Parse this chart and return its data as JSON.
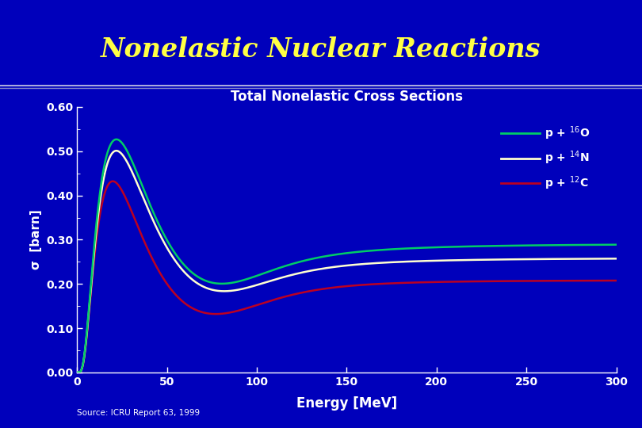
{
  "title": "Nonelastic Nuclear Reactions",
  "subtitle": "Total Nonelastic Cross Sections",
  "xlabel": "Energy [MeV]",
  "ylabel": "σ  [barn]",
  "source": "Source: ICRU Report 63, 1999",
  "bg_color": "#0000BB",
  "title_color": "#FFFF44",
  "subtitle_color": "#FFFFFF",
  "axis_color": "#FFFFFF",
  "text_color": "#FFFFFF",
  "xlim": [
    0,
    300
  ],
  "ylim": [
    0.0,
    0.6
  ],
  "yticks": [
    0.0,
    0.1,
    0.2,
    0.3,
    0.4,
    0.5,
    0.6
  ],
  "xticks": [
    0,
    50,
    100,
    150,
    200,
    250,
    300
  ],
  "line_O_color": "#00CC66",
  "line_N_color": "#FFFFD0",
  "line_C_color": "#BB0022",
  "legend_labels": [
    "p + $^{16}$O",
    "p + $^{14}$N",
    "p + $^{12}$C"
  ]
}
